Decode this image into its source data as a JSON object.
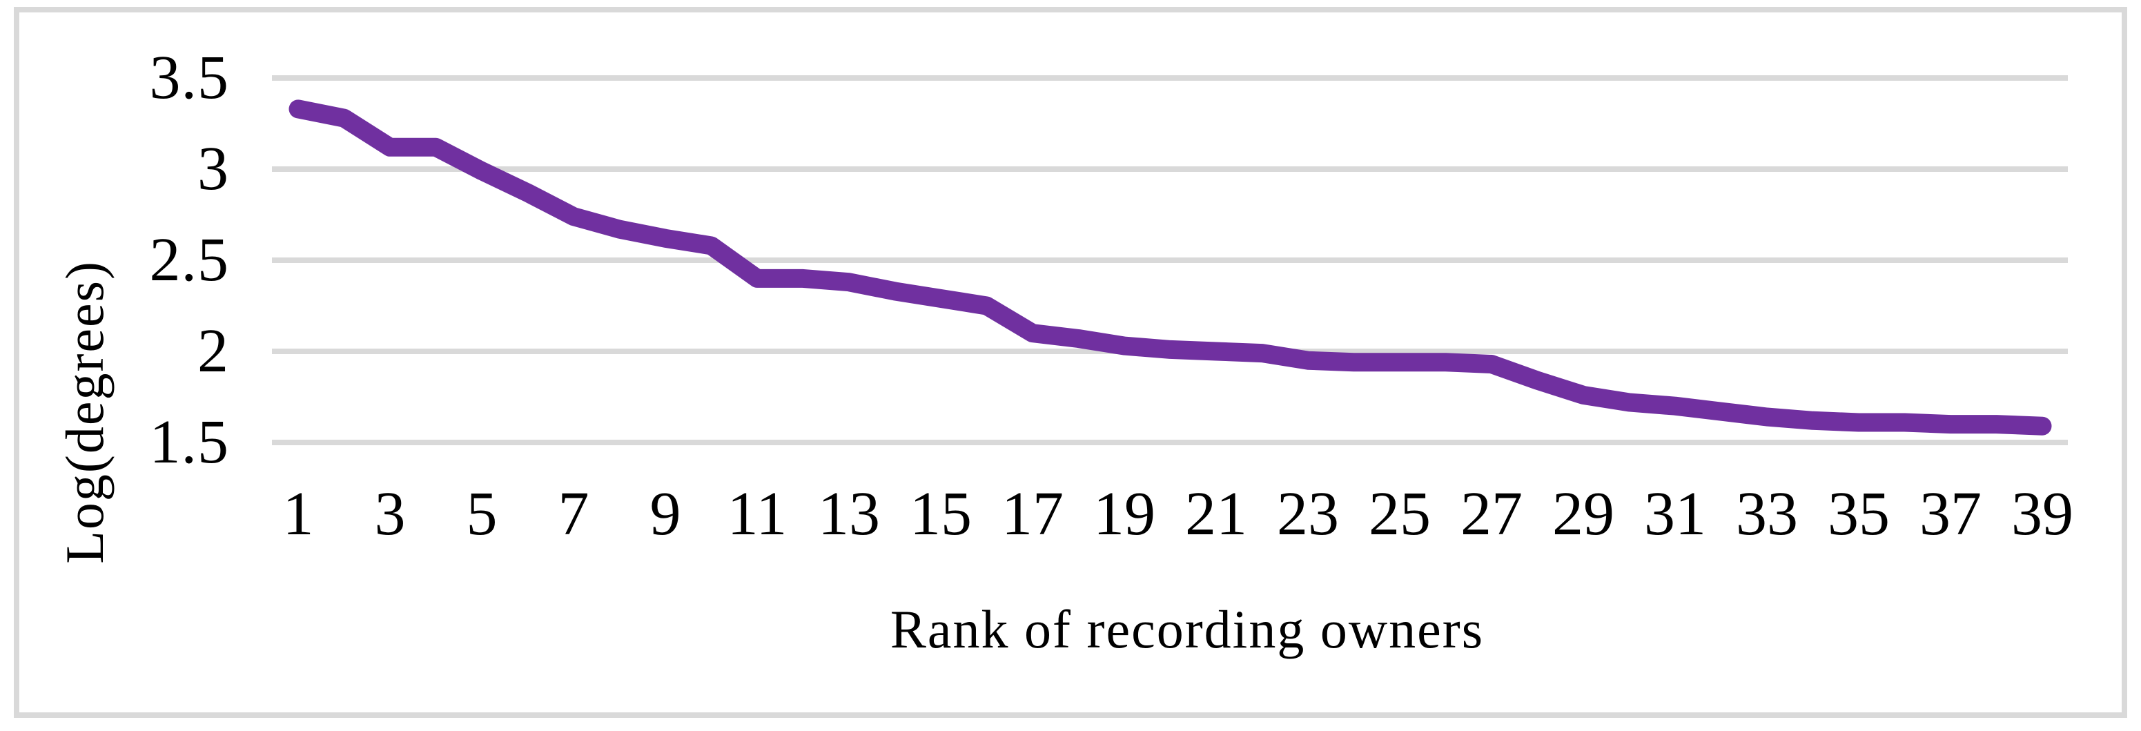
{
  "chart_data": {
    "type": "line",
    "title": "",
    "xlabel": "Rank of recording owners",
    "ylabel": "Log(degrees)",
    "x": [
      1,
      2,
      3,
      4,
      5,
      6,
      7,
      8,
      9,
      10,
      11,
      12,
      13,
      14,
      15,
      16,
      17,
      18,
      19,
      20,
      21,
      22,
      23,
      24,
      25,
      26,
      27,
      28,
      29,
      30,
      31,
      32,
      33,
      34,
      35,
      36,
      37,
      38,
      39
    ],
    "values": [
      3.33,
      3.28,
      3.12,
      3.12,
      2.99,
      2.87,
      2.74,
      2.67,
      2.62,
      2.58,
      2.4,
      2.4,
      2.38,
      2.33,
      2.29,
      2.25,
      2.1,
      2.07,
      2.03,
      2.01,
      2.0,
      1.99,
      1.95,
      1.94,
      1.94,
      1.94,
      1.93,
      1.84,
      1.76,
      1.72,
      1.7,
      1.67,
      1.64,
      1.62,
      1.61,
      1.61,
      1.6,
      1.6,
      1.59
    ],
    "x_tick_labels": [
      "1",
      "3",
      "5",
      "7",
      "9",
      "11",
      "13",
      "15",
      "17",
      "19",
      "21",
      "23",
      "25",
      "27",
      "29",
      "31",
      "33",
      "35",
      "37",
      "39"
    ],
    "x_tick_values": [
      1,
      3,
      5,
      7,
      9,
      11,
      13,
      15,
      17,
      19,
      21,
      23,
      25,
      27,
      29,
      31,
      33,
      35,
      37,
      39
    ],
    "y_tick_labels": [
      "3.5",
      "3",
      "2.5",
      "2",
      "1.5"
    ],
    "y_tick_values": [
      3.5,
      3,
      2.5,
      2,
      1.5
    ],
    "xlim": [
      1,
      39
    ],
    "ylim": [
      1.5,
      3.5
    ],
    "grid": "horizontal-only",
    "legend": "none",
    "line_color": "#7030A0",
    "gridline_color": "#D9D9D9",
    "frame_color": "#D9D9D9",
    "text_color": "#000000",
    "background_color": "#FFFFFF"
  }
}
